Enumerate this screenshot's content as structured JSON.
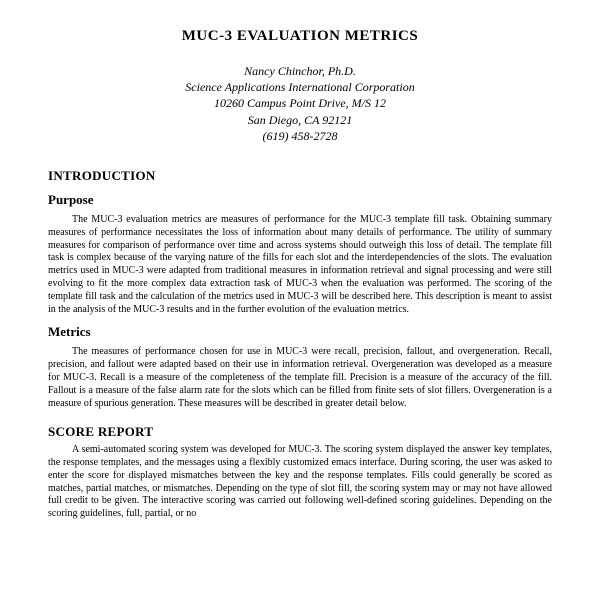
{
  "title": "MUC-3 EVALUATION METRICS",
  "author": {
    "name": "Nancy Chinchor, Ph.D.",
    "org": "Science Applications International Corporation",
    "address": "10260 Campus Point Drive, M/S 12",
    "city": "San Diego, CA  92121",
    "phone": "(619)  458-2728"
  },
  "sections": {
    "intro_heading": "INTRODUCTION",
    "purpose_heading": "Purpose",
    "purpose_body": "The MUC-3 evaluation metrics are measures of performance for the MUC-3 template fill task. Obtaining summary measures of performance necessitates the loss of information about many details of performance. The utility of summary measures for comparison of performance over time and across systems should outweigh this loss of detail. The template fill task is complex because of the varying nature of the fills for each slot and the interdependencies of the slots. The evaluation metrics used in MUC-3 were adapted from traditional measures in information retrieval and signal processing and were still evolving to fit the more complex data extraction task of MUC-3 when the evaluation was performed. The scoring of the template fill task and the calculation of the metrics used in MUC-3 will be described here. This description is meant to assist in the analysis of the MUC-3 results and in the further evolution of the evaluation metrics.",
    "metrics_heading": "Metrics",
    "metrics_body": "The measures of performance chosen for use in MUC-3 were recall, precision, fallout, and overgeneration. Recall, precision, and fallout were adapted based on their use in information retrieval. Overgeneration was developed as a measure for MUC-3. Recall is a measure of the completeness of the template fill. Precision is a measure of the accuracy of the fill. Fallout is a measure of the false alarm rate for the slots which can be filled from finite sets of slot fillers. Overgeneration is a measure of spurious generation. These measures will be described in greater detail below.",
    "score_heading": "SCORE REPORT",
    "score_body": "A semi-automated scoring system was developed for MUC-3. The scoring system displayed the answer key templates, the response templates, and the messages using a flexibly customized emacs interface. During scoring, the user was asked to enter the score for displayed mismatches between the key and the response templates. Fills could generally be scored as matches, partial matches, or mismatches. Depending on the type of slot fill, the scoring system may or may not have allowed full credit to be given. The interactive scoring was carried out following well-defined scoring guidelines. Depending on the scoring guidelines, full, partial, or no"
  }
}
